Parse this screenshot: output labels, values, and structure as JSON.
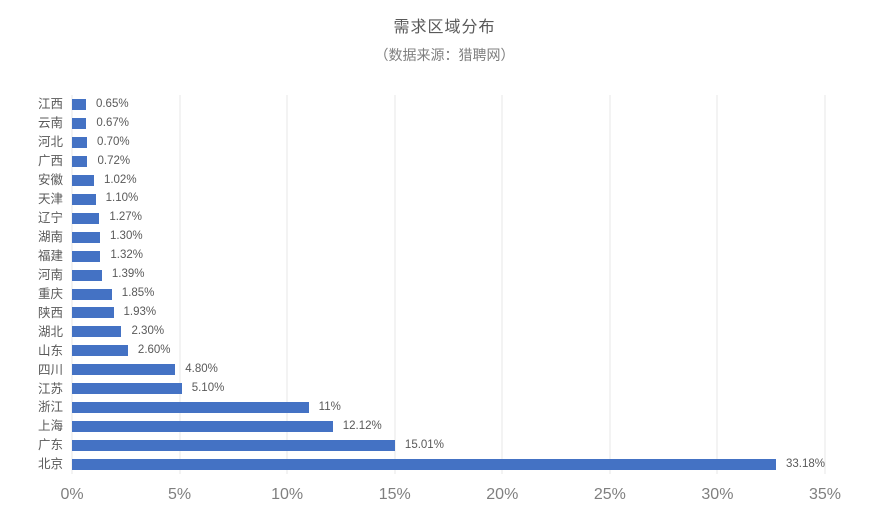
{
  "title": "需求区域分布",
  "subtitle": "（数据来源：猎聘网）",
  "colors": {
    "bar": "#4472C4",
    "gridline": "#E7E7E7",
    "title_text": "#595959",
    "subtitle_text": "#7F7F7F",
    "category_text": "#595959",
    "value_text": "#595959",
    "tick_text": "#7F7F7F",
    "background": "#FFFFFF"
  },
  "chart_data": {
    "type": "bar",
    "orientation": "horizontal",
    "title": "需求区域分布",
    "subtitle": "（数据来源：猎聘网）",
    "xlabel": "",
    "ylabel": "",
    "xlim": [
      0,
      35
    ],
    "grid": "vertical",
    "legend": "none",
    "x_ticks": [
      "0%",
      "5%",
      "10%",
      "15%",
      "20%",
      "25%",
      "30%",
      "35%"
    ],
    "x_tick_values": [
      0,
      5,
      10,
      15,
      20,
      25,
      30,
      35
    ],
    "categories": [
      "江西",
      "云南",
      "河北",
      "广西",
      "安徽",
      "天津",
      "辽宁",
      "湖南",
      "福建",
      "河南",
      "重庆",
      "陕西",
      "湖北",
      "山东",
      "四川",
      "江苏",
      "浙江",
      "上海",
      "广东",
      "北京"
    ],
    "values": [
      0.65,
      0.67,
      0.7,
      0.72,
      1.02,
      1.1,
      1.27,
      1.3,
      1.32,
      1.39,
      1.85,
      1.93,
      2.3,
      2.6,
      4.8,
      5.1,
      11,
      12.12,
      15.01,
      33.18
    ],
    "value_labels": [
      "0.65%",
      "0.67%",
      "0.70%",
      "0.72%",
      "1.02%",
      "1.10%",
      "1.27%",
      "1.30%",
      "1.32%",
      "1.39%",
      "1.85%",
      "1.93%",
      "2.30%",
      "2.60%",
      "4.80%",
      "5.10%",
      "11%",
      "12.12%",
      "15.01%",
      "33.18%"
    ]
  }
}
